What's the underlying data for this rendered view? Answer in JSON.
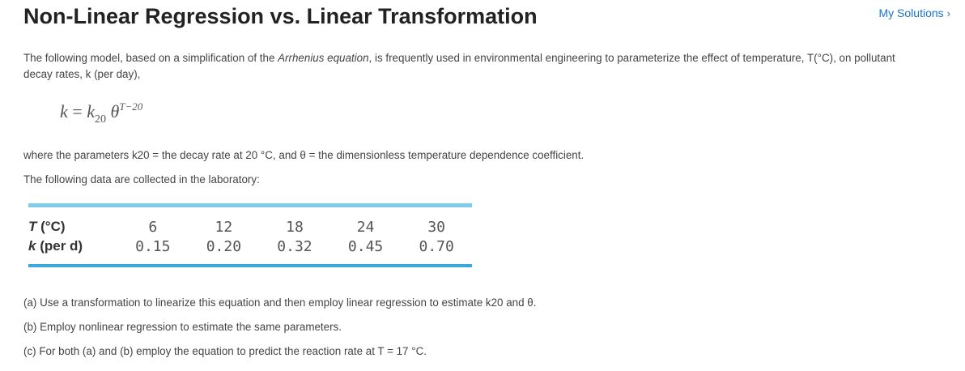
{
  "header": {
    "title": "Non-Linear Regression vs. Linear Transformation",
    "my_solutions_label": "My Solutions",
    "my_solutions_chevron": "›"
  },
  "intro": {
    "before": "The following model, based on a simplification of the ",
    "emphasis": "Arrhenius equation",
    "after": ", is frequently used in environmental engineering to parameterize the effect of temperature, T(°C),  on pollutant decay rates, k (per day),"
  },
  "equation": {
    "lhs": "k",
    "equals": " = ",
    "k": "k",
    "k_sub": "20",
    "theta": "θ",
    "exponent": "T−20"
  },
  "where_text": "where the parameters k20 = the decay rate at 20 °C, and θ =  the dimensionless temperature dependence coefficient.",
  "data_intro": "The following data are collected in the laboratory:",
  "table": {
    "row1": {
      "var": "T",
      "unit": " (°C)",
      "values": [
        "6",
        "12",
        "18",
        "24",
        "30"
      ]
    },
    "row2": {
      "var": "k",
      "unit": " (per d)",
      "values": [
        "0.15",
        "0.20",
        "0.32",
        "0.45",
        "0.70"
      ]
    }
  },
  "questions": {
    "a": "(a) Use a transformation to linearize this equation and then employ linear regression to estimate k20 and θ.",
    "b": "(b) Employ  nonlinear regression to estimate the same parameters.",
    "c": "(c) For  both (a) and (b) employ the equation to predict the reaction  rate at T = 17 °C."
  },
  "colors": {
    "link": "#1a73c9",
    "table_rule_top": "#7fcdea",
    "table_rule_bottom": "#3aa9dd"
  }
}
